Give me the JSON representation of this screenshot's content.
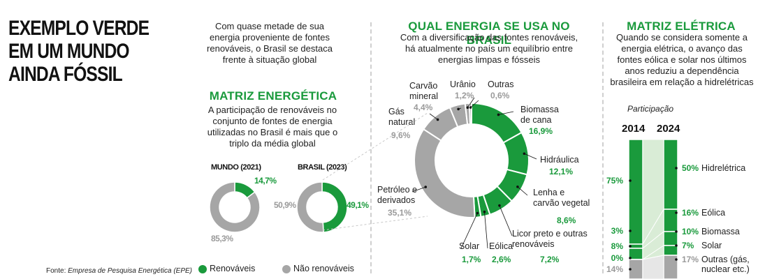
{
  "headline": "EXEMPLO VERDE EM UM MUNDO AINDA FÓSSIL",
  "intro": "Com quase metade de sua energia proveniente de fontes renováveis, o Brasil se destaca frente à situação global",
  "colors": {
    "green": "#1a9a3c",
    "gray": "#a6a6a6",
    "light_green": "#d9ecd6",
    "light_gray": "#e6e6e6"
  },
  "matriz_energetica": {
    "title": "MATRIZ ENERGÉTICA",
    "text": "A participação de renováveis no conjunto de fontes de energia utilizadas no Brasil é mais que o triplo da média global",
    "mundo_label": "MUNDO (2021)",
    "brasil_label": "BRASIL (2023)",
    "mundo_green": "14,7%",
    "mundo_gray": "85,3%",
    "brasil_green": "49,1%",
    "brasil_gray": "50,9%"
  },
  "qual_energia": {
    "title": "QUAL ENERGIA SE USA NO BRASIL",
    "text": "Com a diversificação das fontes renováveis, há atualmente no país um equilíbrio entre energias limpas e fósseis"
  },
  "matriz_eletrica": {
    "title": "MATRIZ ELÉTRICA",
    "text": "Quando se considera somente a energia elétrica, o avanço das fontes eólica e solar nos últimos anos reduziu a dependência brasileira em relação a hidrelétricas",
    "participacao": "Participação",
    "year_2014": "2014",
    "year_2024": "2024"
  },
  "footer": {
    "source_prefix": "Fonte: ",
    "source_name": "Empresa de Pesquisa Energética (EPE)",
    "legend_renovaveis": "Renováveis",
    "legend_nao_renovaveis": "Não renováveis"
  },
  "chart_data": [
    {
      "type": "pie",
      "title": "MUNDO (2021)",
      "categories": [
        "Renováveis",
        "Não renováveis"
      ],
      "values": [
        14.7,
        85.3
      ]
    },
    {
      "type": "pie",
      "title": "BRASIL (2023)",
      "categories": [
        "Renováveis",
        "Não renováveis"
      ],
      "values": [
        49.1,
        50.9
      ]
    },
    {
      "type": "pie",
      "title": "QUAL ENERGIA SE USA NO BRASIL",
      "slices": [
        {
          "label": "Biomassa de cana",
          "value": 16.9,
          "value_text": "16,9%",
          "renewable": true
        },
        {
          "label": "Hidráulica",
          "value": 12.1,
          "value_text": "12,1%",
          "renewable": true
        },
        {
          "label": "Lenha e carvão vegetal",
          "value": 8.6,
          "value_text": "8,6%",
          "renewable": true
        },
        {
          "label": "Licor preto e outras renováveis",
          "value": 7.2,
          "value_text": "7,2%",
          "renewable": true
        },
        {
          "label": "Eólica",
          "value": 2.6,
          "value_text": "2,6%",
          "renewable": true
        },
        {
          "label": "Solar",
          "value": 1.7,
          "value_text": "1,7%",
          "renewable": true
        },
        {
          "label": "Petróleo e derivados",
          "value": 35.1,
          "value_text": "35,1%",
          "renewable": false
        },
        {
          "label": "Gás natural",
          "value": 9.6,
          "value_text": "9,6%",
          "renewable": false
        },
        {
          "label": "Carvão mineral",
          "value": 4.4,
          "value_text": "4,4%",
          "renewable": false
        },
        {
          "label": "Urânio",
          "value": 1.2,
          "value_text": "1,2%",
          "renewable": false
        },
        {
          "label": "Outras",
          "value": 0.6,
          "value_text": "0,6%",
          "renewable": false
        }
      ]
    },
    {
      "type": "bar",
      "title": "MATRIZ ELÉTRICA",
      "categories": [
        "2014",
        "2024"
      ],
      "stacked": true,
      "series": [
        {
          "name": "Hidrelétrica",
          "values": [
            75,
            50
          ],
          "labels": [
            "75%",
            "50%"
          ],
          "renewable": true
        },
        {
          "name": "Eólica",
          "values": [
            3,
            16
          ],
          "labels": [
            "3%",
            "16%"
          ],
          "renewable": true
        },
        {
          "name": "Biomassa",
          "values": [
            8,
            10
          ],
          "labels": [
            "8%",
            "10%"
          ],
          "renewable": true
        },
        {
          "name": "Solar",
          "values": [
            0,
            7
          ],
          "labels": [
            "0%",
            "7%"
          ],
          "renewable": true
        },
        {
          "name": "Outras (gás, nuclear etc.)",
          "values": [
            14,
            17
          ],
          "labels": [
            "14%",
            "17%"
          ],
          "renewable": false
        }
      ]
    }
  ]
}
